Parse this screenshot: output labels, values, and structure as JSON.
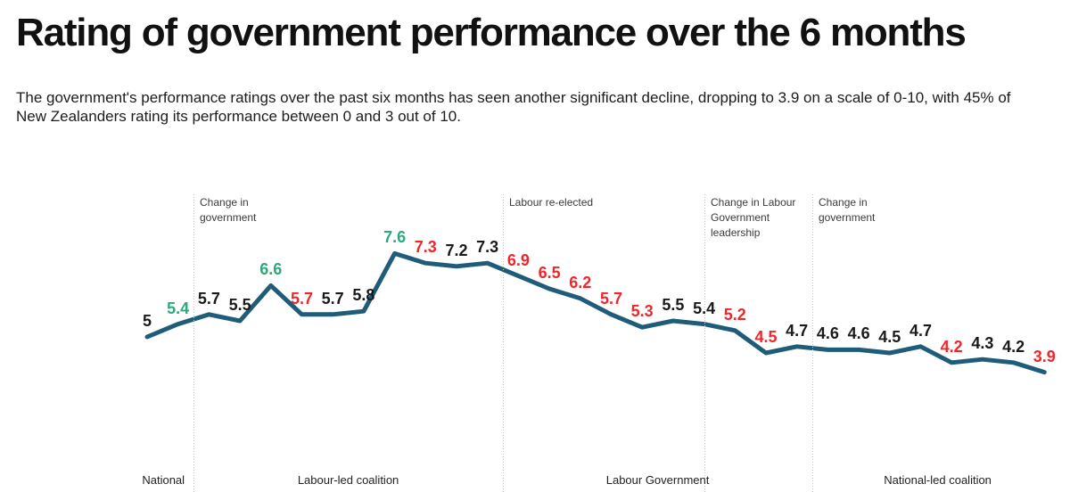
{
  "title": "Rating of government performance over the 6 months",
  "subtitle_lines": [
    "The government's performance ratings over the past six months has seen another significant decline, dropping to 3.9 on a scale of 0-10, with 45% of",
    "New Zealanders rating its performance between 0 and 3 out of 10."
  ],
  "chart_data": {
    "type": "line",
    "title": "Rating of government performance over the 6 months",
    "scale_note": "ratings on a scale of 0-10",
    "x_axis_visible": false,
    "y_axis_visible": false,
    "grid": "off",
    "legend": "none",
    "values": [
      5,
      5.4,
      5.7,
      5.5,
      6.6,
      5.7,
      5.7,
      5.8,
      7.6,
      7.3,
      7.2,
      7.3,
      6.9,
      6.5,
      6.2,
      5.7,
      5.3,
      5.5,
      5.4,
      5.2,
      4.5,
      4.7,
      4.6,
      4.6,
      4.5,
      4.7,
      4.2,
      4.3,
      4.2,
      3.9
    ],
    "labels": [
      "5",
      "5.4",
      "5.7",
      "5.5",
      "6.6",
      "5.7",
      "5.7",
      "5.8",
      "7.6",
      "7.3",
      "7.2",
      "7.3",
      "6.9",
      "6.5",
      "6.2",
      "5.7",
      "5.3",
      "5.5",
      "5.4",
      "5.2",
      "4.5",
      "4.7",
      "4.6",
      "4.6",
      "4.5",
      "4.7",
      "4.2",
      "4.3",
      "4.2",
      "3.9"
    ],
    "label_trend": [
      "none",
      "up",
      "none",
      "none",
      "up",
      "down",
      "none",
      "none",
      "up",
      "down",
      "none",
      "none",
      "down",
      "down",
      "down",
      "down",
      "down",
      "none",
      "none",
      "down",
      "down",
      "none",
      "none",
      "none",
      "none",
      "none",
      "down",
      "none",
      "none",
      "down"
    ],
    "colors": {
      "line": "#1F5C79",
      "up": "#2BA97A",
      "down": "#F0262B",
      "none": "#1A1A1A",
      "annotation_line": "#C5C5C5",
      "annotation_text": "#3B3B3B",
      "era_text": "#222222"
    },
    "annotations": [
      {
        "at_index": 1.5,
        "lines": [
          "Change in",
          "government"
        ]
      },
      {
        "at_index": 11.5,
        "lines": [
          "Labour re-elected"
        ]
      },
      {
        "at_index": 18,
        "lines": [
          "Change in Labour",
          "Government",
          "leadership"
        ]
      },
      {
        "at_index": 21.5,
        "lines": [
          "Change in",
          "government"
        ]
      }
    ],
    "eras": [
      {
        "label": "National",
        "from": -0.45,
        "to": 1.5
      },
      {
        "label": "Labour-led coalition",
        "from": 1.5,
        "to": 11.5
      },
      {
        "label": "Labour Government",
        "from": 11.5,
        "to": 21.5
      },
      {
        "label": "National-led coalition",
        "from": 21.5,
        "to": 29.6
      }
    ]
  }
}
